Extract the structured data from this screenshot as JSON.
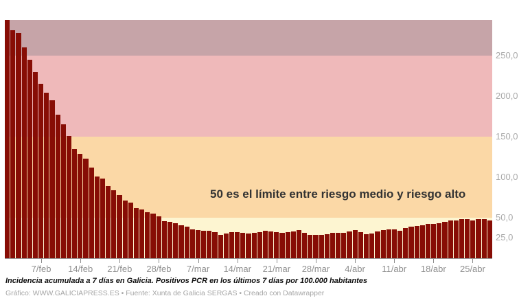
{
  "chart_data": {
    "type": "bar",
    "title": "",
    "xlabel": "",
    "ylabel": "",
    "ylim": [
      0,
      294
    ],
    "grid": false,
    "legend": "none",
    "bar_color": "#870d05",
    "axis_color": "#9a9a9a",
    "tick_label_color": "#8f8f8f",
    "annotation": "50 es el límite entre riesgo medio y riesgo alto",
    "x": [
      "1/feb",
      "2/feb",
      "3/feb",
      "4/feb",
      "5/feb",
      "6/feb",
      "7/feb",
      "8/feb",
      "9/feb",
      "10/feb",
      "11/feb",
      "12/feb",
      "13/feb",
      "14/feb",
      "15/feb",
      "16/feb",
      "17/feb",
      "18/feb",
      "19/feb",
      "20/feb",
      "21/feb",
      "22/feb",
      "23/feb",
      "24/feb",
      "25/feb",
      "26/feb",
      "27/feb",
      "28/feb",
      "1/mar",
      "2/mar",
      "3/mar",
      "4/mar",
      "5/mar",
      "6/mar",
      "7/mar",
      "8/mar",
      "9/mar",
      "10/mar",
      "11/mar",
      "12/mar",
      "13/mar",
      "14/mar",
      "15/mar",
      "16/mar",
      "17/mar",
      "18/mar",
      "19/mar",
      "20/mar",
      "21/mar",
      "22/mar",
      "23/mar",
      "24/mar",
      "25/mar",
      "26/mar",
      "27/mar",
      "28/mar",
      "29/mar",
      "30/mar",
      "31/mar",
      "1/abr",
      "2/abr",
      "3/abr",
      "4/abr",
      "5/abr",
      "6/abr",
      "7/abr",
      "8/abr",
      "9/abr",
      "10/abr",
      "11/abr",
      "12/abr",
      "13/abr",
      "14/abr",
      "15/abr",
      "16/abr",
      "17/abr",
      "18/abr",
      "19/abr",
      "20/abr",
      "21/abr",
      "22/abr",
      "23/abr",
      "24/abr",
      "25/abr",
      "26/abr",
      "27/abr",
      "28/abr"
    ],
    "values": [
      294,
      281,
      278,
      260,
      245,
      230,
      215,
      204,
      195,
      177,
      165,
      151,
      135,
      129,
      123,
      112,
      101,
      98,
      89,
      84,
      78,
      71,
      69,
      62,
      60,
      57,
      55,
      52,
      46,
      45,
      43,
      41,
      39,
      36,
      35,
      33.5,
      33.5,
      32,
      29,
      30.5,
      32,
      32,
      31.5,
      30.5,
      31.5,
      32,
      33.5,
      33,
      32,
      31,
      32,
      33,
      34.5,
      31,
      29,
      28.5,
      29,
      30,
      31.5,
      31.5,
      31,
      33,
      34.5,
      32,
      29.5,
      30.5,
      33,
      35,
      36,
      36,
      34,
      37,
      39,
      40,
      40.5,
      42,
      42.5,
      43.5,
      45,
      46.5,
      47,
      48,
      48,
      47,
      48,
      48,
      47
    ],
    "y_ticks": [
      {
        "value": 250,
        "label": "250,0"
      },
      {
        "value": 200,
        "label": "200,0"
      },
      {
        "value": 150,
        "label": "150,0"
      },
      {
        "value": 100,
        "label": "100,0"
      },
      {
        "value": 50,
        "label": "50,0"
      },
      {
        "value": 25,
        "label": "25,0"
      }
    ],
    "x_ticks": [
      {
        "day_index": 6,
        "label": "7/feb"
      },
      {
        "day_index": 13,
        "label": "14/feb"
      },
      {
        "day_index": 20,
        "label": "21/feb"
      },
      {
        "day_index": 27,
        "label": "28/feb"
      },
      {
        "day_index": 34,
        "label": "7/mar"
      },
      {
        "day_index": 41,
        "label": "14/mar"
      },
      {
        "day_index": 48,
        "label": "21/mar"
      },
      {
        "day_index": 55,
        "label": "28/mar"
      },
      {
        "day_index": 62,
        "label": "4/abr"
      },
      {
        "day_index": 69,
        "label": "11/abr"
      },
      {
        "day_index": 76,
        "label": "18/abr"
      },
      {
        "day_index": 83,
        "label": "25/abr"
      }
    ],
    "bands": [
      {
        "from": 250,
        "to": 294,
        "color": "#c6a4a8"
      },
      {
        "from": 150,
        "to": 250,
        "color": "#efb9ba"
      },
      {
        "from": 50,
        "to": 150,
        "color": "#fbd8a6"
      },
      {
        "from": 0,
        "to": 50,
        "color": "#fdf5d1"
      }
    ]
  },
  "footer": {
    "description": "Incidencia acumulada a 7 días en Galicia. Positivos PCR en los últimos 7 días por 100.000 habitantes",
    "credit": "Gráfico: WWW.GALICIAPRESS.ES • Fuente: Xunta de Galicia SERGAS • Creado con Datawrapper"
  }
}
